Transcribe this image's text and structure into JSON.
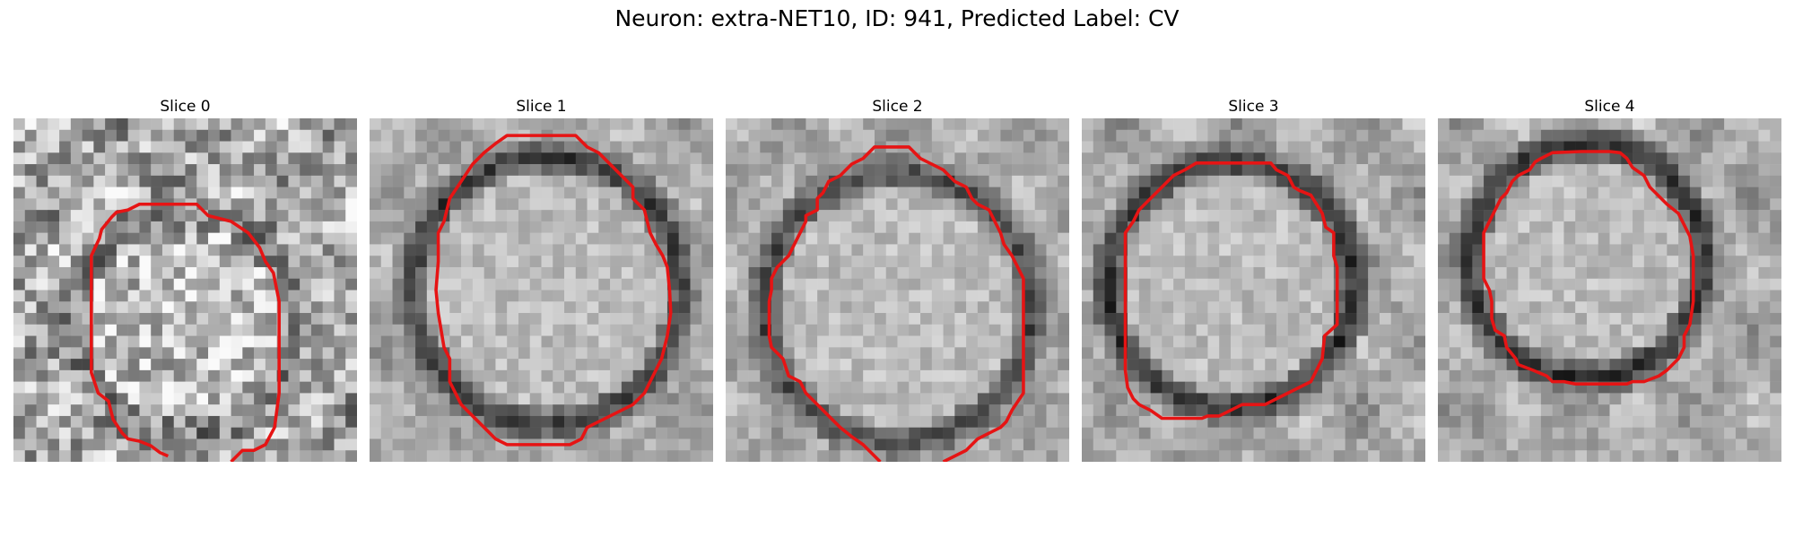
{
  "figure": {
    "title": "Neuron: extra-NET10, ID: 941, Predicted Label: CV",
    "contour_color": "#e61414"
  },
  "panels": [
    {
      "title": "Slice 0"
    },
    {
      "title": "Slice 1"
    },
    {
      "title": "Slice 2"
    },
    {
      "title": "Slice 3"
    },
    {
      "title": "Slice 4"
    }
  ]
}
